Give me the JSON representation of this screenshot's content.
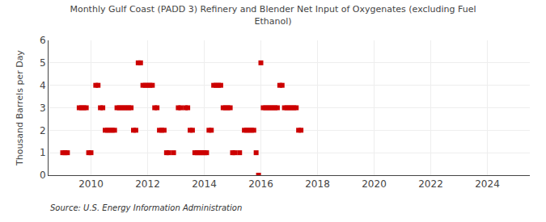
{
  "chart_data": {
    "type": "scatter",
    "title": "Monthly Gulf Coast (PADD 3) Refinery and Blender Net Input of Oxygenates (excluding Fuel\nEthanol)",
    "ylabel": "Thousand Barrels per Day",
    "annotations": [
      "Source: U.S. Energy Information Administration"
    ],
    "color": "#cc0000",
    "marker": "square",
    "grid": true,
    "xlim": [
      2008.5,
      2025.5
    ],
    "xticks": [
      2010,
      2012,
      2014,
      2016,
      2018,
      2020,
      2022,
      2024
    ],
    "ylim": [
      0,
      6
    ],
    "yticks": [
      0,
      1,
      2,
      3,
      4,
      5,
      6
    ],
    "x": [
      2009.0,
      2009.083,
      2009.167,
      2009.583,
      2009.667,
      2009.75,
      2009.833,
      2009.917,
      2010.0,
      2010.167,
      2010.25,
      2010.333,
      2010.417,
      2010.5,
      2010.583,
      2010.667,
      2010.75,
      2010.833,
      2010.917,
      2011.0,
      2011.083,
      2011.167,
      2011.25,
      2011.333,
      2011.417,
      2011.5,
      2011.583,
      2011.667,
      2011.75,
      2011.833,
      2011.917,
      2012.0,
      2012.083,
      2012.167,
      2012.25,
      2012.333,
      2012.417,
      2012.5,
      2012.583,
      2012.667,
      2012.75,
      2012.917,
      2013.083,
      2013.167,
      2013.333,
      2013.417,
      2013.5,
      2013.583,
      2013.667,
      2013.75,
      2013.833,
      2013.917,
      2014.0,
      2014.083,
      2014.167,
      2014.25,
      2014.333,
      2014.417,
      2014.5,
      2014.583,
      2014.667,
      2014.75,
      2014.833,
      2014.917,
      2015.0,
      2015.083,
      2015.25,
      2015.417,
      2015.5,
      2015.583,
      2015.667,
      2015.75,
      2015.833,
      2015.917,
      2016.0,
      2016.083,
      2016.167,
      2016.25,
      2016.333,
      2016.417,
      2016.5,
      2016.583,
      2016.667,
      2016.75,
      2016.833,
      2016.917,
      2017.0,
      2017.083,
      2017.167,
      2017.25,
      2017.333,
      2017.417
    ],
    "values": [
      1,
      1,
      1,
      3,
      3,
      3,
      3,
      1,
      1,
      4,
      4,
      3,
      3,
      2,
      2,
      2,
      2,
      2,
      3,
      3,
      3,
      3,
      3,
      3,
      3,
      2,
      2,
      5,
      5,
      4,
      4,
      4,
      4,
      4,
      3,
      3,
      2,
      2,
      2,
      1,
      1,
      1,
      3,
      3,
      3,
      3,
      2,
      2,
      1,
      1,
      1,
      1,
      1,
      1,
      2,
      2,
      4,
      4,
      4,
      4,
      3,
      3,
      3,
      3,
      1,
      1,
      1,
      2,
      2,
      2,
      2,
      2,
      1,
      0,
      5,
      3,
      3,
      3,
      3,
      3,
      3,
      3,
      4,
      4,
      3,
      3,
      3,
      3,
      3,
      3,
      2,
      2
    ]
  }
}
